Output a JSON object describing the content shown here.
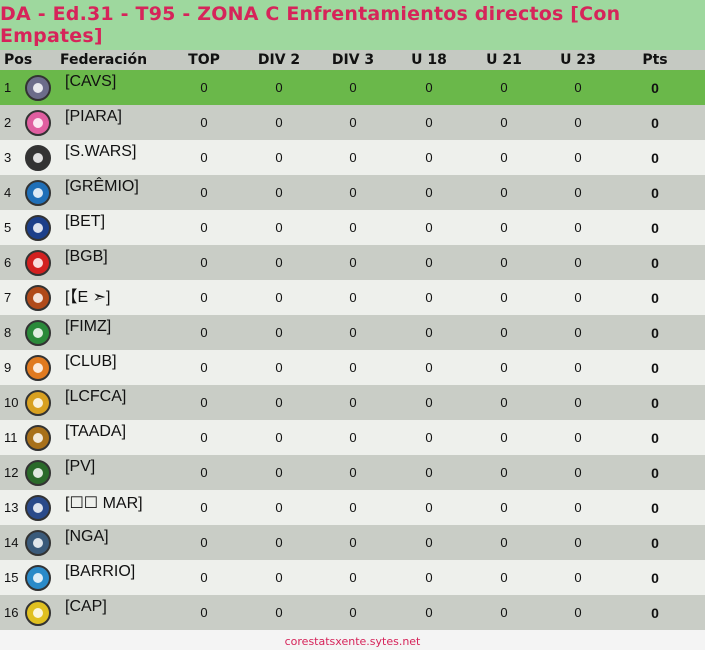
{
  "title": "DA - Ed.31 - T95 - ZONA C Enfrentamientos directos [Con Empates]",
  "headers": {
    "pos": "Pos",
    "fed": "Federación",
    "top": "TOP",
    "div2": "DIV 2",
    "div3": "DIV 3",
    "u18": "U 18",
    "u21": "U 21",
    "u23": "U 23",
    "pts": "Pts"
  },
  "rows": [
    {
      "pos": "1",
      "name": "[CAVS]",
      "logo_color": "#6c6c8a",
      "top": "0",
      "div2": "0",
      "div3": "0",
      "u18": "0",
      "u21": "0",
      "u23": "0",
      "pts": "0"
    },
    {
      "pos": "2",
      "name": "[PIARA]",
      "logo_color": "#e05ea0",
      "top": "0",
      "div2": "0",
      "div3": "0",
      "u18": "0",
      "u21": "0",
      "u23": "0",
      "pts": "0"
    },
    {
      "pos": "3",
      "name": "[S.WARS]",
      "logo_color": "#333333",
      "top": "0",
      "div2": "0",
      "div3": "0",
      "u18": "0",
      "u21": "0",
      "u23": "0",
      "pts": "0"
    },
    {
      "pos": "4",
      "name": "[GRÊMIO]",
      "logo_color": "#1f6fb8",
      "top": "0",
      "div2": "0",
      "div3": "0",
      "u18": "0",
      "u21": "0",
      "u23": "0",
      "pts": "0"
    },
    {
      "pos": "5",
      "name": "[BET]",
      "logo_color": "#1c3f8a",
      "top": "0",
      "div2": "0",
      "div3": "0",
      "u18": "0",
      "u21": "0",
      "u23": "0",
      "pts": "0"
    },
    {
      "pos": "6",
      "name": "[BGB]",
      "logo_color": "#d32020",
      "top": "0",
      "div2": "0",
      "div3": "0",
      "u18": "0",
      "u21": "0",
      "u23": "0",
      "pts": "0"
    },
    {
      "pos": "7",
      "name": "[【E ➣]",
      "logo_color": "#b04a1a",
      "top": "0",
      "div2": "0",
      "div3": "0",
      "u18": "0",
      "u21": "0",
      "u23": "0",
      "pts": "0"
    },
    {
      "pos": "8",
      "name": "[FIMZ]",
      "logo_color": "#2a8a3a",
      "top": "0",
      "div2": "0",
      "div3": "0",
      "u18": "0",
      "u21": "0",
      "u23": "0",
      "pts": "0"
    },
    {
      "pos": "9",
      "name": "[CLUB]",
      "logo_color": "#e07a20",
      "top": "0",
      "div2": "0",
      "div3": "0",
      "u18": "0",
      "u21": "0",
      "u23": "0",
      "pts": "0"
    },
    {
      "pos": "10",
      "name": "[LCFCA]",
      "logo_color": "#d8a020",
      "top": "0",
      "div2": "0",
      "div3": "0",
      "u18": "0",
      "u21": "0",
      "u23": "0",
      "pts": "0"
    },
    {
      "pos": "11",
      "name": "[TAADA]",
      "logo_color": "#a8701a",
      "top": "0",
      "div2": "0",
      "div3": "0",
      "u18": "0",
      "u21": "0",
      "u23": "0",
      "pts": "0"
    },
    {
      "pos": "12",
      "name": "[PV]",
      "logo_color": "#2a6a2a",
      "top": "0",
      "div2": "0",
      "div3": "0",
      "u18": "0",
      "u21": "0",
      "u23": "0",
      "pts": "0"
    },
    {
      "pos": "13",
      "name": "[☐☐ MAR]",
      "logo_color": "#2a4a8a",
      "top": "0",
      "div2": "0",
      "div3": "0",
      "u18": "0",
      "u21": "0",
      "u23": "0",
      "pts": "0"
    },
    {
      "pos": "14",
      "name": "[NGA]",
      "logo_color": "#3a5a7a",
      "top": "0",
      "div2": "0",
      "div3": "0",
      "u18": "0",
      "u21": "0",
      "u23": "0",
      "pts": "0"
    },
    {
      "pos": "15",
      "name": "[BARRIO]",
      "logo_color": "#2a8ac8",
      "top": "0",
      "div2": "0",
      "div3": "0",
      "u18": "0",
      "u21": "0",
      "u23": "0",
      "pts": "0"
    },
    {
      "pos": "16",
      "name": "[CAP]",
      "logo_color": "#e0c020",
      "top": "0",
      "div2": "0",
      "div3": "0",
      "u18": "0",
      "u21": "0",
      "u23": "0",
      "pts": "0"
    }
  ],
  "footer": "corestatsxente.sytes.net"
}
